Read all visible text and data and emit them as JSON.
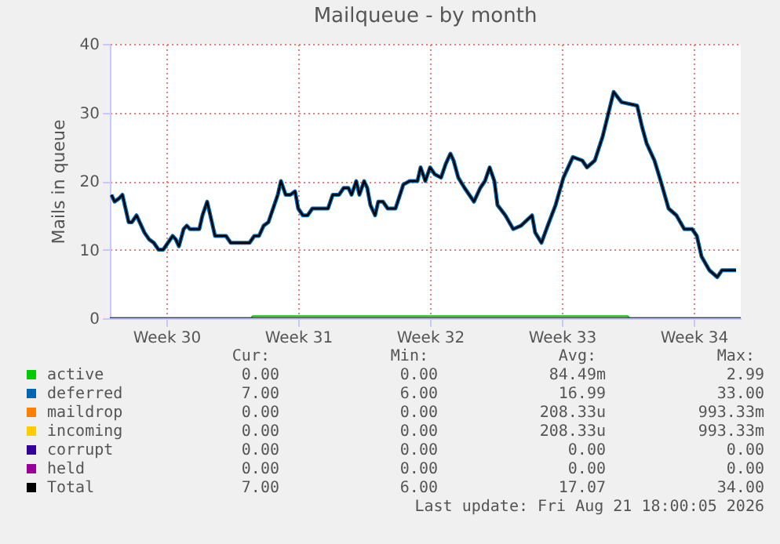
{
  "chart_data": {
    "type": "line",
    "title": "Mailqueue - by month",
    "ylabel": "Mails in queue",
    "xlim": [
      "2026-07-20T00:00",
      "2026-08-22T12:00"
    ],
    "xticks": [
      {
        "value": "2026-07-23T00:00",
        "label": "Week 30"
      },
      {
        "value": "2026-07-30T00:00",
        "label": "Week 31"
      },
      {
        "value": "2026-08-06T00:00",
        "label": "Week 32"
      },
      {
        "value": "2026-08-13T00:00",
        "label": "Week 33"
      },
      {
        "value": "2026-08-20T00:00",
        "label": "Week 34"
      }
    ],
    "ylim": [
      0,
      40
    ],
    "yticks": [
      0,
      10,
      20,
      30,
      40
    ],
    "grid": true,
    "legend": "bottom",
    "marker": "none",
    "line_style": "solid",
    "series": [
      {
        "name": "active",
        "color": "#00cc00",
        "x": [
          "2026-07-20T00:00",
          "2026-07-27T12:00",
          "2026-07-27T14:00",
          "2026-08-16T12:00",
          "2026-08-16T14:00",
          "2026-08-22T12:00"
        ],
        "values": [
          0,
          0,
          0.3,
          0.3,
          0,
          0
        ]
      },
      {
        "name": "deferred",
        "color": "#0066b3",
        "x": [
          "2026-07-20T02:00",
          "2026-07-20T06:00",
          "2026-07-20T12:00",
          "2026-07-20T16:00",
          "2026-07-20T20:00",
          "2026-07-21T00:00",
          "2026-07-21T04:00",
          "2026-07-21T10:00",
          "2026-07-21T14:00",
          "2026-07-21T20:00",
          "2026-07-22T02:00",
          "2026-07-22T08:00",
          "2026-07-22T14:00",
          "2026-07-22T20:00",
          "2026-07-23T02:00",
          "2026-07-23T08:00",
          "2026-07-23T12:00",
          "2026-07-23T16:00",
          "2026-07-23T22:00",
          "2026-07-24T02:00",
          "2026-07-24T06:00",
          "2026-07-24T18:00",
          "2026-07-24T22:00",
          "2026-07-25T04:00",
          "2026-07-25T08:00",
          "2026-07-25T14:00",
          "2026-07-26T04:00",
          "2026-07-26T10:00",
          "2026-07-27T10:00",
          "2026-07-27T16:00",
          "2026-07-27T22:00",
          "2026-07-28T04:00",
          "2026-07-28T10:00",
          "2026-07-28T16:00",
          "2026-07-28T22:00",
          "2026-07-29T02:00",
          "2026-07-29T08:00",
          "2026-07-29T14:00",
          "2026-07-29T20:00",
          "2026-07-30T00:00",
          "2026-07-30T06:00",
          "2026-07-30T12:00",
          "2026-07-30T18:00",
          "2026-07-31T14:00",
          "2026-07-31T20:00",
          "2026-08-01T04:00",
          "2026-08-01T10:00",
          "2026-08-01T16:00",
          "2026-08-01T20:00",
          "2026-08-02T02:00",
          "2026-08-02T06:00",
          "2026-08-02T12:00",
          "2026-08-02T16:00",
          "2026-08-02T20:00",
          "2026-08-03T02:00",
          "2026-08-03T06:00",
          "2026-08-03T12:00",
          "2026-08-03T18:00",
          "2026-08-04T04:00",
          "2026-08-04T14:00",
          "2026-08-04T22:00",
          "2026-08-05T08:00",
          "2026-08-05T12:00",
          "2026-08-05T18:00",
          "2026-08-06T00:00",
          "2026-08-06T06:00",
          "2026-08-06T14:00",
          "2026-08-06T20:00",
          "2026-08-07T02:00",
          "2026-08-07T06:00",
          "2026-08-07T12:00",
          "2026-08-07T20:00",
          "2026-08-08T02:00",
          "2026-08-08T08:00",
          "2026-08-08T16:00",
          "2026-08-08T22:00",
          "2026-08-09T04:00",
          "2026-08-09T10:00",
          "2026-08-09T14:00",
          "2026-08-10T00:00",
          "2026-08-10T10:00",
          "2026-08-10T20:00",
          "2026-08-11T10:00",
          "2026-08-11T14:00",
          "2026-08-11T22:00",
          "2026-08-12T06:00",
          "2026-08-12T16:00",
          "2026-08-13T02:00",
          "2026-08-13T14:00",
          "2026-08-14T02:00",
          "2026-08-14T08:00",
          "2026-08-14T18:00",
          "2026-08-15T04:00",
          "2026-08-15T18:00",
          "2026-08-16T04:00",
          "2026-08-17T00:00",
          "2026-08-17T06:00",
          "2026-08-17T12:00",
          "2026-08-17T22:00",
          "2026-08-18T06:00",
          "2026-08-18T16:00",
          "2026-08-19T02:00",
          "2026-08-19T12:00",
          "2026-08-19T22:00",
          "2026-08-20T04:00",
          "2026-08-20T10:00",
          "2026-08-20T20:00",
          "2026-08-21T06:00",
          "2026-08-21T12:00",
          "2026-08-22T06:00"
        ],
        "values": [
          18,
          17,
          17.5,
          18,
          16,
          14,
          14,
          15,
          14,
          12.5,
          11.5,
          11,
          10,
          10,
          11,
          12,
          11.5,
          10.5,
          13,
          13.5,
          13,
          13,
          15,
          17,
          15,
          12,
          12,
          11,
          11,
          12,
          12,
          13.5,
          14,
          16,
          18,
          20,
          18,
          18,
          18.5,
          16,
          15,
          15,
          16,
          16,
          18,
          18,
          19,
          19,
          18,
          20,
          18,
          20,
          19,
          16.5,
          15,
          17,
          17,
          16,
          16,
          19.5,
          20,
          20,
          22,
          20,
          22,
          21,
          20.5,
          22.5,
          24,
          23,
          20.5,
          19,
          18,
          17,
          19,
          20,
          22,
          20,
          16.5,
          15,
          13,
          13.5,
          15,
          12.5,
          11,
          13.5,
          16.5,
          20.5,
          23.5,
          23,
          22,
          23,
          26.5,
          33,
          31.5,
          31,
          28,
          25.5,
          23,
          20,
          16,
          15,
          13,
          13,
          12,
          9,
          7,
          6,
          7,
          7
        ]
      },
      {
        "name": "maildrop",
        "color": "#ff8000"
      },
      {
        "name": "incoming",
        "color": "#ffcc00"
      },
      {
        "name": "corrupt",
        "color": "#330099"
      },
      {
        "name": "held",
        "color": "#990099",
        "x": [
          "2026-07-20T00:00",
          "2026-08-22T12:00"
        ],
        "values": [
          0,
          0
        ]
      },
      {
        "name": "Total",
        "color": "#000000",
        "x": [
          "2026-07-20T02:00",
          "2026-07-20T06:00",
          "2026-07-20T12:00",
          "2026-07-20T16:00",
          "2026-07-20T20:00",
          "2026-07-21T00:00",
          "2026-07-21T04:00",
          "2026-07-21T10:00",
          "2026-07-21T14:00",
          "2026-07-21T20:00",
          "2026-07-22T02:00",
          "2026-07-22T08:00",
          "2026-07-22T14:00",
          "2026-07-22T20:00",
          "2026-07-23T02:00",
          "2026-07-23T08:00",
          "2026-07-23T12:00",
          "2026-07-23T16:00",
          "2026-07-23T22:00",
          "2026-07-24T02:00",
          "2026-07-24T06:00",
          "2026-07-24T18:00",
          "2026-07-24T22:00",
          "2026-07-25T04:00",
          "2026-07-25T08:00",
          "2026-07-25T14:00",
          "2026-07-26T04:00",
          "2026-07-26T10:00",
          "2026-07-27T10:00",
          "2026-07-27T16:00",
          "2026-07-27T22:00",
          "2026-07-28T04:00",
          "2026-07-28T10:00",
          "2026-07-28T16:00",
          "2026-07-28T22:00",
          "2026-07-29T02:00",
          "2026-07-29T08:00",
          "2026-07-29T14:00",
          "2026-07-29T20:00",
          "2026-07-30T00:00",
          "2026-07-30T06:00",
          "2026-07-30T12:00",
          "2026-07-30T18:00",
          "2026-07-31T14:00",
          "2026-07-31T20:00",
          "2026-08-01T04:00",
          "2026-08-01T10:00",
          "2026-08-01T16:00",
          "2026-08-01T20:00",
          "2026-08-02T02:00",
          "2026-08-02T06:00",
          "2026-08-02T12:00",
          "2026-08-02T16:00",
          "2026-08-02T20:00",
          "2026-08-03T02:00",
          "2026-08-03T06:00",
          "2026-08-03T12:00",
          "2026-08-03T18:00",
          "2026-08-04T04:00",
          "2026-08-04T14:00",
          "2026-08-04T22:00",
          "2026-08-05T08:00",
          "2026-08-05T12:00",
          "2026-08-05T18:00",
          "2026-08-06T00:00",
          "2026-08-06T06:00",
          "2026-08-06T14:00",
          "2026-08-06T20:00",
          "2026-08-07T02:00",
          "2026-08-07T06:00",
          "2026-08-07T12:00",
          "2026-08-07T20:00",
          "2026-08-08T02:00",
          "2026-08-08T08:00",
          "2026-08-08T16:00",
          "2026-08-08T22:00",
          "2026-08-09T04:00",
          "2026-08-09T10:00",
          "2026-08-09T14:00",
          "2026-08-10T00:00",
          "2026-08-10T10:00",
          "2026-08-10T20:00",
          "2026-08-11T10:00",
          "2026-08-11T14:00",
          "2026-08-11T22:00",
          "2026-08-12T06:00",
          "2026-08-12T16:00",
          "2026-08-13T02:00",
          "2026-08-13T14:00",
          "2026-08-14T02:00",
          "2026-08-14T08:00",
          "2026-08-14T18:00",
          "2026-08-15T04:00",
          "2026-08-15T18:00",
          "2026-08-16T04:00",
          "2026-08-17T00:00",
          "2026-08-17T06:00",
          "2026-08-17T12:00",
          "2026-08-17T22:00",
          "2026-08-18T06:00",
          "2026-08-18T16:00",
          "2026-08-19T02:00",
          "2026-08-19T12:00",
          "2026-08-19T22:00",
          "2026-08-20T04:00",
          "2026-08-20T10:00",
          "2026-08-20T20:00",
          "2026-08-21T06:00",
          "2026-08-21T12:00",
          "2026-08-22T06:00"
        ],
        "values": [
          18,
          17,
          17.5,
          18,
          16,
          14,
          14,
          15,
          14,
          12.5,
          11.5,
          11,
          10,
          10,
          11,
          12,
          11.5,
          10.5,
          13,
          13.5,
          13,
          13,
          15,
          17,
          15,
          12,
          12,
          11,
          11,
          12,
          12,
          13.5,
          14,
          16,
          18,
          20,
          18,
          18,
          18.5,
          16,
          15,
          15,
          16,
          16,
          18,
          18,
          19,
          19,
          18,
          20,
          18,
          20,
          19,
          16.5,
          15,
          17,
          17,
          16,
          16,
          19.5,
          20,
          20,
          22,
          20,
          22,
          21,
          20.5,
          22.5,
          24,
          23,
          20.5,
          19,
          18,
          17,
          19,
          20,
          22,
          20,
          16.5,
          15,
          13,
          13.5,
          15,
          12.5,
          11,
          13.5,
          16.5,
          20.5,
          23.5,
          23,
          22,
          23,
          26.5,
          33,
          31.5,
          31,
          28,
          25.5,
          23,
          20,
          16,
          15,
          13,
          13,
          12,
          9,
          7,
          6,
          7,
          7
        ]
      }
    ],
    "annotations": [
      "Cur:",
      "Min:",
      "Avg:",
      "Max:",
      "0.00",
      "0.00",
      "84.49m",
      "2.99",
      "7.00",
      "6.00",
      "16.99",
      "33.00",
      "0.00",
      "0.00",
      "208.33u",
      "993.33m",
      "0.00",
      "0.00",
      "208.33u",
      "993.33m",
      "0.00",
      "0.00",
      "0.00",
      "0.00",
      "0.00",
      "0.00",
      "0.00",
      "0.00",
      "7.00",
      "6.00",
      "17.07",
      "34.00",
      "Last update: Fri Aug 21 18:00:05 2026"
    ]
  }
}
